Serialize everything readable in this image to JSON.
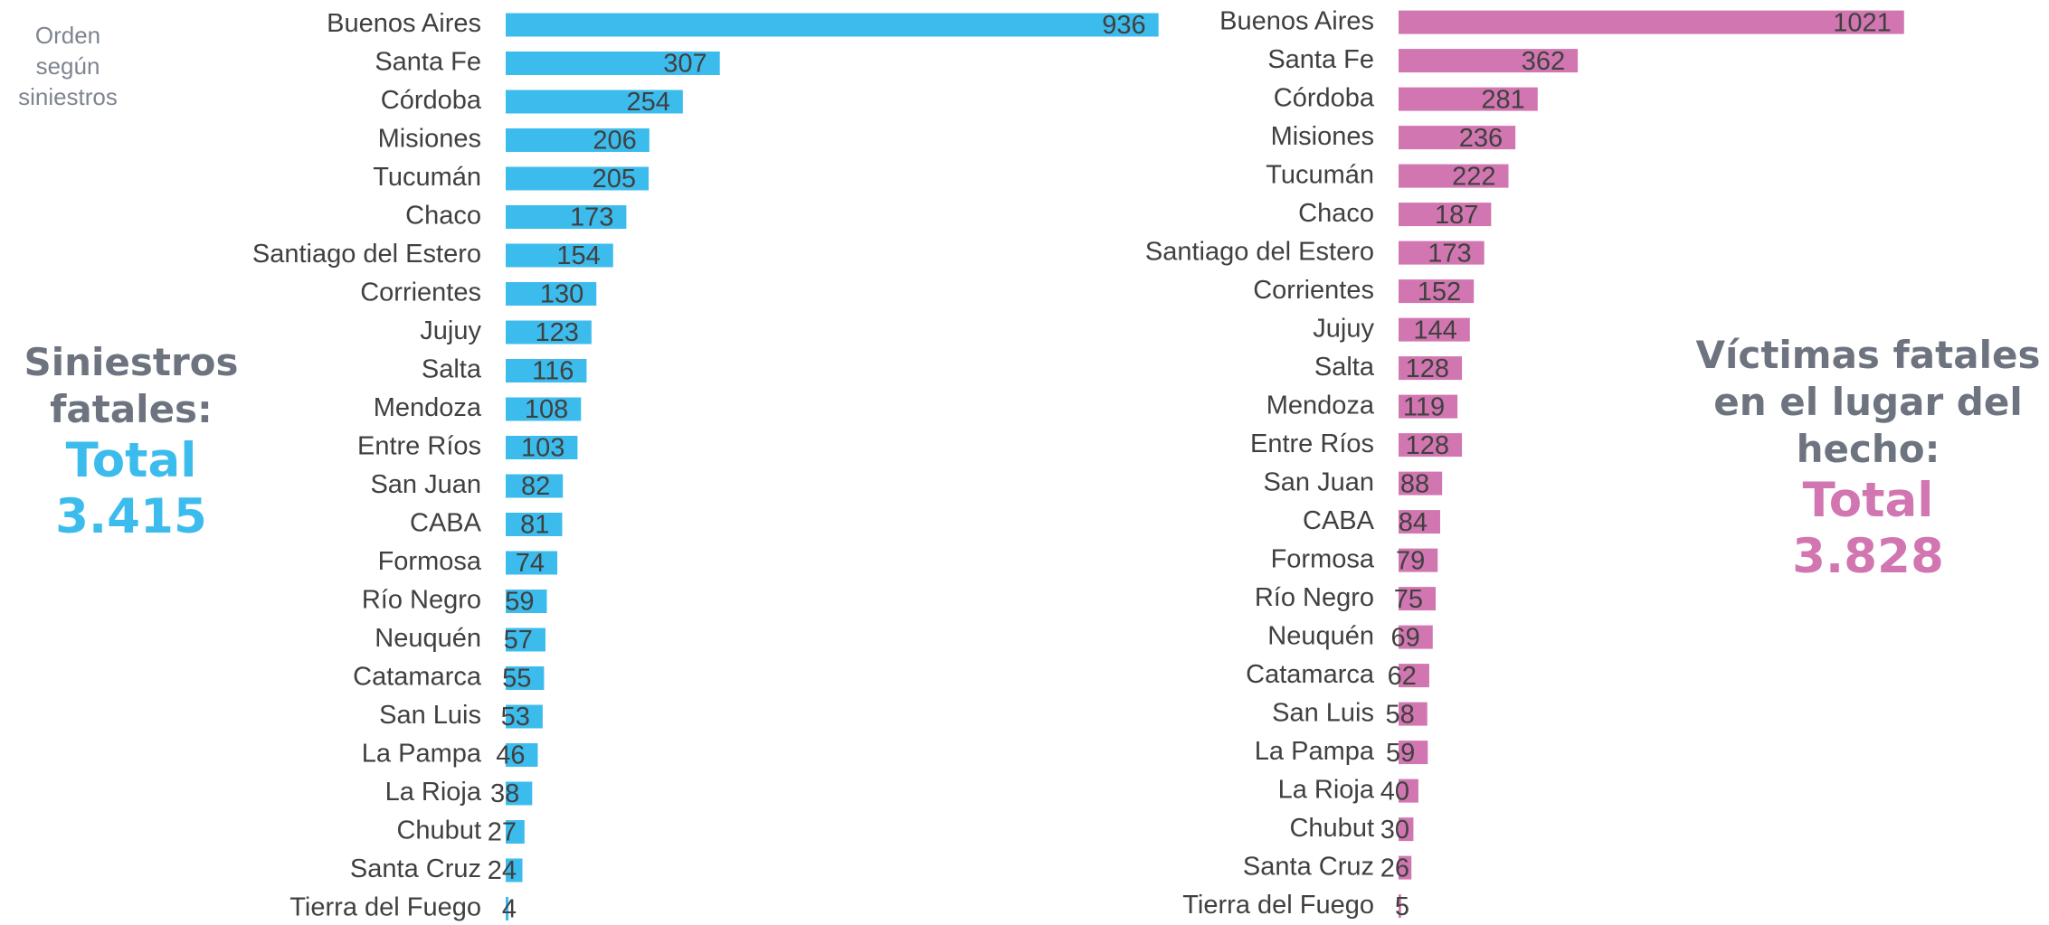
{
  "sort_note": "Orden según siniestros",
  "chart_data": [
    {
      "type": "bar",
      "orientation": "horizontal",
      "title": "Siniestros fatales:",
      "annotations": [
        "Total",
        "3.415"
      ],
      "categories": [
        "Buenos Aires",
        "Santa Fe",
        "Córdoba",
        "Misiones",
        "Tucumán",
        "Chaco",
        "Santiago del Estero",
        "Corrientes",
        "Jujuy",
        "Salta",
        "Mendoza",
        "Entre Ríos",
        "San Juan",
        "CABA",
        "Formosa",
        "Río Negro",
        "Neuquén",
        "Catamarca",
        "San Luis",
        "La Pampa",
        "La Rioja",
        "Chubut",
        "Santa Cruz",
        "Tierra del Fuego"
      ],
      "values": [
        936,
        307,
        254,
        206,
        205,
        173,
        154,
        130,
        123,
        116,
        108,
        103,
        82,
        81,
        74,
        59,
        57,
        55,
        53,
        46,
        38,
        27,
        24,
        4
      ],
      "color": "#3cbced",
      "xlim": [
        0,
        1000
      ]
    },
    {
      "type": "bar",
      "orientation": "horizontal",
      "title": "Víctimas fatales en el lugar del hecho:",
      "annotations": [
        "Total",
        "3.828"
      ],
      "categories": [
        "Buenos Aires",
        "Santa Fe",
        "Córdoba",
        "Misiones",
        "Tucumán",
        "Chaco",
        "Santiago del Estero",
        "Corrientes",
        "Jujuy",
        "Salta",
        "Mendoza",
        "Entre Ríos",
        "San Juan",
        "CABA",
        "Formosa",
        "Río Negro",
        "Neuquén",
        "Catamarca",
        "San Luis",
        "La Pampa",
        "La Rioja",
        "Chubut",
        "Santa Cruz",
        "Tierra del Fuego"
      ],
      "values": [
        1021,
        362,
        281,
        236,
        222,
        187,
        173,
        152,
        144,
        128,
        119,
        128,
        88,
        84,
        79,
        75,
        69,
        62,
        58,
        59,
        40,
        30,
        26,
        5
      ],
      "color": "#d176b0",
      "xlim": [
        0,
        1100
      ]
    }
  ]
}
